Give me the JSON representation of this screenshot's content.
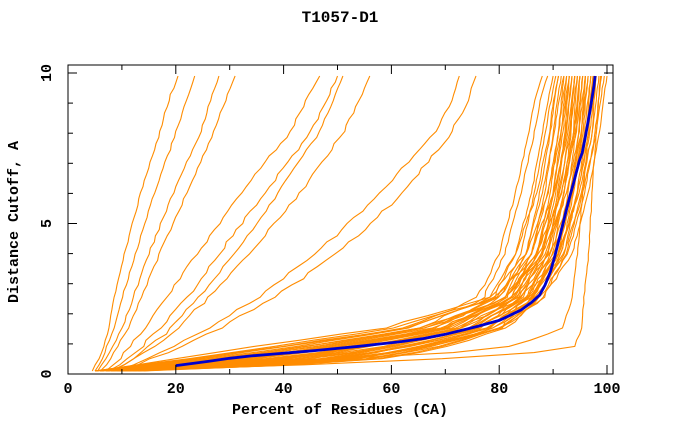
{
  "chart_data": {
    "type": "line",
    "title": "T1057-D1",
    "xlabel": "Percent of Residues (CA)",
    "ylabel": "Distance Cutoff, A",
    "xlim": [
      0,
      101.2
    ],
    "ylim": [
      0,
      10.3
    ],
    "x_major_ticks": [
      0,
      20,
      40,
      60,
      80,
      100
    ],
    "x_minor_ticks": [
      10,
      30,
      50,
      70,
      90
    ],
    "y_major_ticks": [
      0,
      5,
      10
    ],
    "y_minor_ticks": [
      1,
      2,
      3,
      4,
      6,
      7,
      8,
      9
    ],
    "grid": false,
    "legend": "none",
    "model_color": "#ff8c00",
    "highlight_color": "#0000cd",
    "cutoff_anchors": [
      0.1,
      0.4,
      0.8,
      1.5,
      2.5,
      4,
      6,
      8,
      9,
      9.9
    ],
    "model_curves_percent_at_cutoff": [
      [
        4.5,
        5.5,
        6.5,
        7.5,
        8.5,
        10.5,
        13.5,
        17,
        18.5,
        20.4
      ],
      [
        5,
        6,
        7,
        8.5,
        10,
        12.5,
        16,
        20,
        21.8,
        23.5
      ],
      [
        5.5,
        6.5,
        8,
        10,
        12,
        15,
        19.5,
        24.5,
        26.3,
        28
      ],
      [
        6,
        7.5,
        9,
        11,
        13.5,
        17,
        22,
        27,
        29,
        31
      ],
      [
        7,
        9,
        11,
        14,
        18,
        24,
        32,
        41,
        44,
        46.7
      ],
      [
        7.5,
        10,
        13,
        17,
        22,
        28,
        36.5,
        45,
        47.7,
        50
      ],
      [
        8,
        11,
        14.5,
        19,
        24,
        31,
        39,
        46.5,
        49,
        51
      ],
      [
        8,
        11,
        15,
        20,
        26,
        33.5,
        43,
        51,
        53.8,
        56
      ],
      [
        9,
        13,
        18,
        26,
        35,
        46,
        58,
        68,
        71,
        72.6
      ],
      [
        10,
        14,
        20,
        28,
        38,
        50,
        62,
        71,
        74,
        75.7
      ],
      [
        5,
        18,
        35,
        62,
        76,
        80,
        83,
        85.5,
        86.5,
        88
      ],
      [
        6,
        22,
        40,
        65,
        77,
        81,
        84,
        86.5,
        87.5,
        89
      ],
      [
        7,
        26,
        45,
        68,
        79,
        83,
        86,
        88,
        89,
        90
      ],
      [
        5,
        30,
        48,
        70,
        80,
        84,
        86.5,
        88.5,
        89.5,
        90.5
      ],
      [
        8,
        34,
        52,
        72,
        81,
        85,
        87.5,
        89.5,
        90.2,
        91
      ],
      [
        6,
        20,
        38,
        63,
        78,
        83,
        87,
        89.3,
        90,
        91
      ],
      [
        9,
        38,
        55,
        74,
        82,
        86,
        88.5,
        90,
        90.7,
        91.5
      ],
      [
        5,
        24,
        42,
        66,
        80,
        85,
        88,
        90.2,
        91,
        92
      ],
      [
        10,
        42,
        58,
        75,
        83,
        87,
        89.5,
        91,
        91.5,
        92
      ],
      [
        6,
        28,
        46,
        69,
        81,
        86,
        89,
        91,
        91.7,
        92.5
      ],
      [
        11,
        46,
        60,
        76,
        84,
        88,
        90,
        91.5,
        92,
        92.5
      ],
      [
        7,
        32,
        50,
        71,
        82,
        87,
        90,
        91.8,
        92.4,
        93
      ],
      [
        5,
        16,
        30,
        58,
        78,
        85,
        89,
        91.5,
        92.2,
        93
      ],
      [
        12,
        50,
        63,
        78,
        85,
        89,
        90.8,
        92.2,
        92.6,
        93
      ],
      [
        8,
        36,
        53,
        73,
        83,
        88,
        90.5,
        92.3,
        92.9,
        93.5
      ],
      [
        6,
        25,
        44,
        67,
        81,
        87,
        90.2,
        92.5,
        93,
        93.5
      ],
      [
        9,
        40,
        56,
        75,
        84,
        89,
        91.2,
        93,
        93.5,
        94
      ],
      [
        5,
        20,
        36,
        62,
        79,
        86,
        90,
        92.8,
        93.4,
        94
      ],
      [
        13,
        52,
        65,
        79,
        86,
        90,
        92,
        93.3,
        93.6,
        94
      ],
      [
        7,
        30,
        48,
        70,
        82,
        88,
        91,
        93.2,
        93.8,
        94.5
      ],
      [
        10,
        44,
        59,
        76,
        85,
        89.5,
        92,
        93.8,
        94.1,
        94.5
      ],
      [
        6,
        24,
        42,
        66,
        81,
        87.5,
        91.5,
        93.8,
        94.4,
        95
      ],
      [
        11,
        48,
        62,
        78,
        86,
        90.5,
        92.8,
        94.2,
        94.6,
        95
      ],
      [
        8,
        35,
        52,
        72,
        83,
        89,
        92,
        94,
        94.5,
        95
      ],
      [
        5,
        18,
        34,
        60,
        79,
        87,
        91.5,
        94.3,
        94.9,
        95.5
      ],
      [
        12,
        50,
        64,
        79,
        86,
        91,
        93.2,
        94.8,
        95.1,
        95.5
      ],
      [
        7,
        28,
        46,
        69,
        82,
        88.5,
        92.5,
        94.8,
        95.4,
        96
      ],
      [
        9,
        40,
        57,
        76,
        85,
        90.5,
        93.3,
        95.2,
        95.6,
        96
      ],
      [
        14,
        54,
        67,
        80,
        87,
        91.5,
        93.8,
        95.3,
        95.7,
        96
      ],
      [
        6,
        22,
        40,
        65,
        81,
        88,
        92.5,
        95.2,
        95.8,
        96.5
      ],
      [
        10,
        45,
        60,
        77,
        85.5,
        90.8,
        93.6,
        95.6,
        96,
        96.5
      ],
      [
        8,
        33,
        51,
        72,
        84,
        90,
        93.5,
        95.8,
        96.4,
        97
      ],
      [
        12,
        52,
        66,
        80,
        87,
        92,
        94.4,
        96.2,
        96.6,
        97
      ],
      [
        7,
        27,
        46,
        70,
        83,
        89.5,
        93.5,
        96.2,
        96.8,
        97.5
      ],
      [
        10,
        43,
        60,
        78,
        86,
        91.5,
        94.5,
        96.6,
        97,
        97.5
      ],
      [
        9,
        38,
        56,
        76,
        85.5,
        91.2,
        94.5,
        96.8,
        97.4,
        98
      ],
      [
        13,
        55,
        68,
        81,
        88,
        92.5,
        95.2,
        97.2,
        97.6,
        98
      ],
      [
        8,
        32,
        52,
        74,
        85,
        91,
        94.8,
        97.3,
        97.9,
        98.5
      ],
      [
        11,
        48,
        64,
        80,
        87.5,
        92.8,
        95.8,
        97.8,
        98.4,
        99
      ],
      [
        9,
        42,
        60,
        78,
        86.5,
        92,
        95.5,
        98,
        98.7,
        99.5
      ],
      [
        10,
        46,
        63,
        80,
        88,
        93.5,
        96.5,
        98.6,
        99.2,
        100
      ],
      [
        9,
        40,
        80,
        91.5,
        93.5,
        94.5,
        95.5,
        96.5,
        97,
        97.4
      ],
      [
        10,
        60,
        94,
        95.3,
        95.7,
        96.6,
        97.2,
        98,
        98.4,
        98.8
      ]
    ],
    "highlight_curve": [
      [
        20,
        0.28
      ],
      [
        23,
        0.35
      ],
      [
        26,
        0.42
      ],
      [
        30,
        0.52
      ],
      [
        34,
        0.6
      ],
      [
        38,
        0.66
      ],
      [
        42,
        0.72
      ],
      [
        46,
        0.78
      ],
      [
        50,
        0.85
      ],
      [
        54,
        0.92
      ],
      [
        58,
        1.0
      ],
      [
        62,
        1.08
      ],
      [
        66,
        1.18
      ],
      [
        70,
        1.32
      ],
      [
        73,
        1.45
      ],
      [
        76,
        1.58
      ],
      [
        78,
        1.68
      ],
      [
        80,
        1.78
      ],
      [
        82,
        1.95
      ],
      [
        84,
        2.12
      ],
      [
        86,
        2.38
      ],
      [
        87.5,
        2.62
      ],
      [
        88.5,
        2.95
      ],
      [
        89.5,
        3.4
      ],
      [
        90.3,
        3.9
      ],
      [
        91,
        4.4
      ],
      [
        91.7,
        4.9
      ],
      [
        92.4,
        5.4
      ],
      [
        93.1,
        5.9
      ],
      [
        93.8,
        6.35
      ],
      [
        94.3,
        6.7
      ],
      [
        94.9,
        7.1
      ],
      [
        95.4,
        7.35
      ],
      [
        95.9,
        7.8
      ],
      [
        96.4,
        8.3
      ],
      [
        96.9,
        8.8
      ],
      [
        97.3,
        9.25
      ],
      [
        97.6,
        9.6
      ],
      [
        97.8,
        9.9
      ]
    ]
  }
}
